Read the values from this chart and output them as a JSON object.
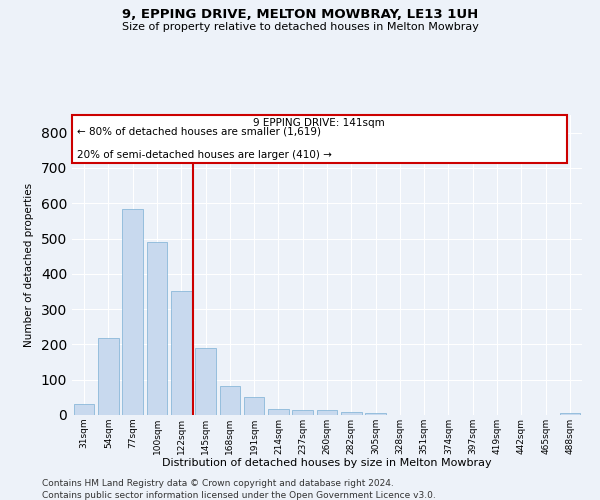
{
  "title1": "9, EPPING DRIVE, MELTON MOWBRAY, LE13 1UH",
  "title2": "Size of property relative to detached houses in Melton Mowbray",
  "xlabel": "Distribution of detached houses by size in Melton Mowbray",
  "ylabel": "Number of detached properties",
  "bar_color": "#c8d9ee",
  "bar_edgecolor": "#7bafd4",
  "annotation_box_edgecolor": "#cc0000",
  "vline_color": "#cc0000",
  "categories": [
    "31sqm",
    "54sqm",
    "77sqm",
    "100sqm",
    "122sqm",
    "145sqm",
    "168sqm",
    "191sqm",
    "214sqm",
    "237sqm",
    "260sqm",
    "282sqm",
    "305sqm",
    "328sqm",
    "351sqm",
    "374sqm",
    "397sqm",
    "419sqm",
    "442sqm",
    "465sqm",
    "488sqm"
  ],
  "values": [
    30,
    218,
    585,
    490,
    350,
    190,
    83,
    52,
    17,
    13,
    13,
    8,
    5,
    0,
    0,
    0,
    0,
    0,
    0,
    0,
    5
  ],
  "annotation_line1": "9 EPPING DRIVE: 141sqm",
  "annotation_line2": "← 80% of detached houses are smaller (1,619)",
  "annotation_line3": "20% of semi-detached houses are larger (410) →",
  "vline_x_index": 4,
  "ylim": [
    0,
    850
  ],
  "yticks": [
    0,
    100,
    200,
    300,
    400,
    500,
    600,
    700,
    800
  ],
  "footer1": "Contains HM Land Registry data © Crown copyright and database right 2024.",
  "footer2": "Contains public sector information licensed under the Open Government Licence v3.0.",
  "bg_color": "#edf2f9",
  "grid_color": "#ffffff"
}
